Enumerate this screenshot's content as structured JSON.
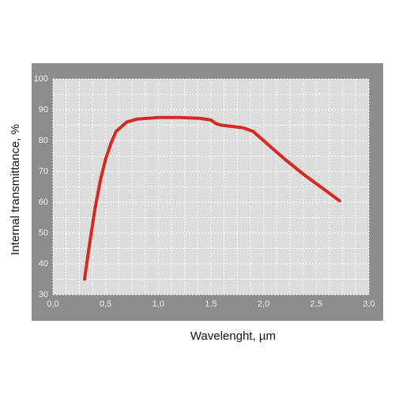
{
  "chart_data": {
    "type": "line",
    "x_label": "Wavelenght, µm",
    "y_label": "Internal transmittance, %",
    "x": [
      0.3,
      0.35,
      0.4,
      0.45,
      0.5,
      0.55,
      0.6,
      0.7,
      0.8,
      1.0,
      1.2,
      1.4,
      1.5,
      1.55,
      1.6,
      1.8,
      1.9,
      2.0,
      2.2,
      2.4,
      2.6,
      2.72
    ],
    "values": [
      35,
      47,
      58,
      67,
      74,
      79,
      83,
      86,
      87,
      87.5,
      87.5,
      87.2,
      86.7,
      85.5,
      85,
      84.2,
      83,
      80,
      74,
      68.5,
      63.5,
      60.5
    ],
    "color": "#d42a20",
    "xlim": [
      0,
      3
    ],
    "ylim": [
      30,
      100
    ],
    "xticks": [
      {
        "value": 0,
        "label": "0,0"
      },
      {
        "value": 0.5,
        "label": "0,5"
      },
      {
        "value": 1,
        "label": "1,0"
      },
      {
        "value": 1.5,
        "label": "1,5"
      },
      {
        "value": 2,
        "label": "2,0"
      },
      {
        "value": 2.5,
        "label": "2,5"
      },
      {
        "value": 3,
        "label": "3,0"
      }
    ],
    "yticks": [
      30,
      40,
      50,
      60,
      70,
      80,
      90,
      100
    ],
    "grid": true
  }
}
